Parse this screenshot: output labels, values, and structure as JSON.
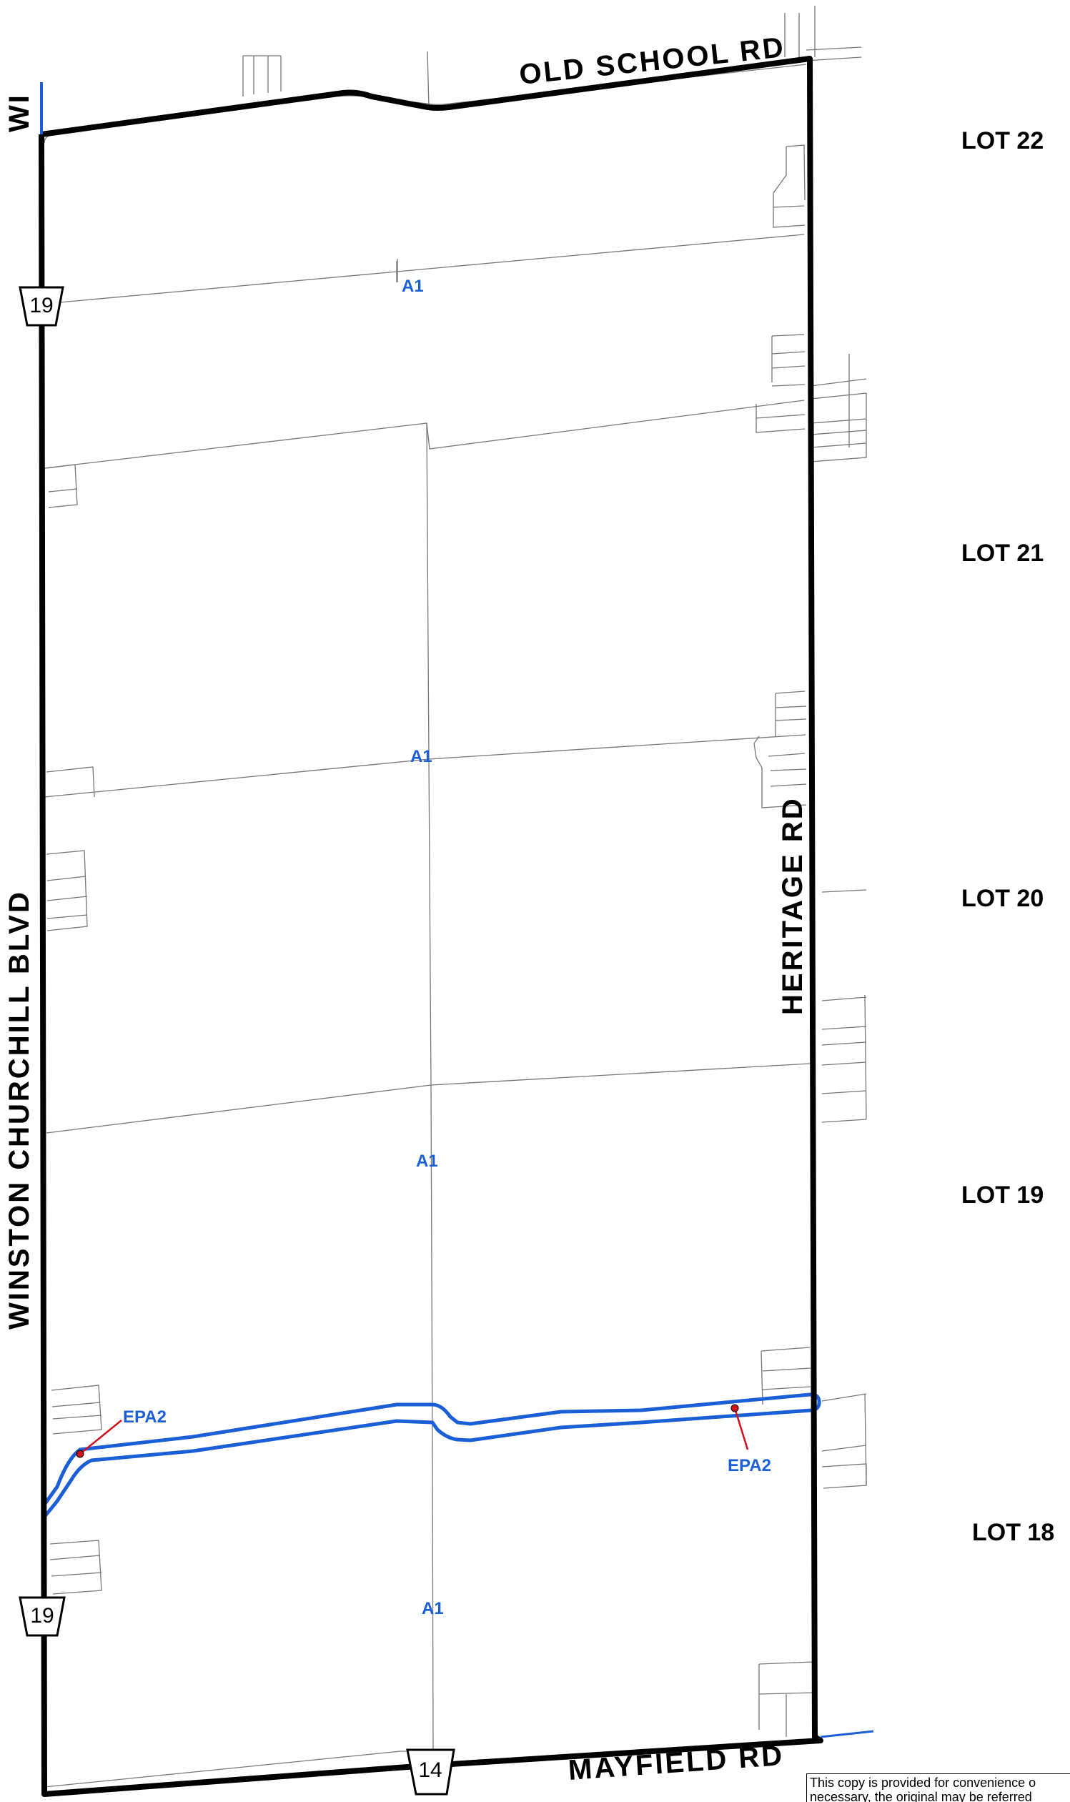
{
  "roads": {
    "north": "OLD SCHOOL RD",
    "west": "WINSTON CHURCHILL BLVD",
    "west_top_cut": "WI",
    "east": "HERITAGE RD",
    "south": "MAYFIELD RD"
  },
  "highway_shields": {
    "west_upper": "19",
    "west_lower": "19",
    "south": "14"
  },
  "zones": {
    "a1_1": "A1",
    "a1_2": "A1",
    "a1_3": "A1",
    "a1_4": "A1",
    "epa2_west": "EPA2",
    "epa2_east": "EPA2"
  },
  "lots": [
    "LOT 22",
    "LOT 21",
    "LOT 20",
    "LOT 19",
    "LOT 18"
  ],
  "notice": {
    "line1": "This copy is provided for convenience o",
    "line2": "necessary, the original may be referred"
  },
  "colors": {
    "boundary": "#000000",
    "zone_label": "#1a5fd6",
    "epa_line": "#1a5fd6",
    "leader": "#d0111b",
    "parcel": "#777777"
  }
}
